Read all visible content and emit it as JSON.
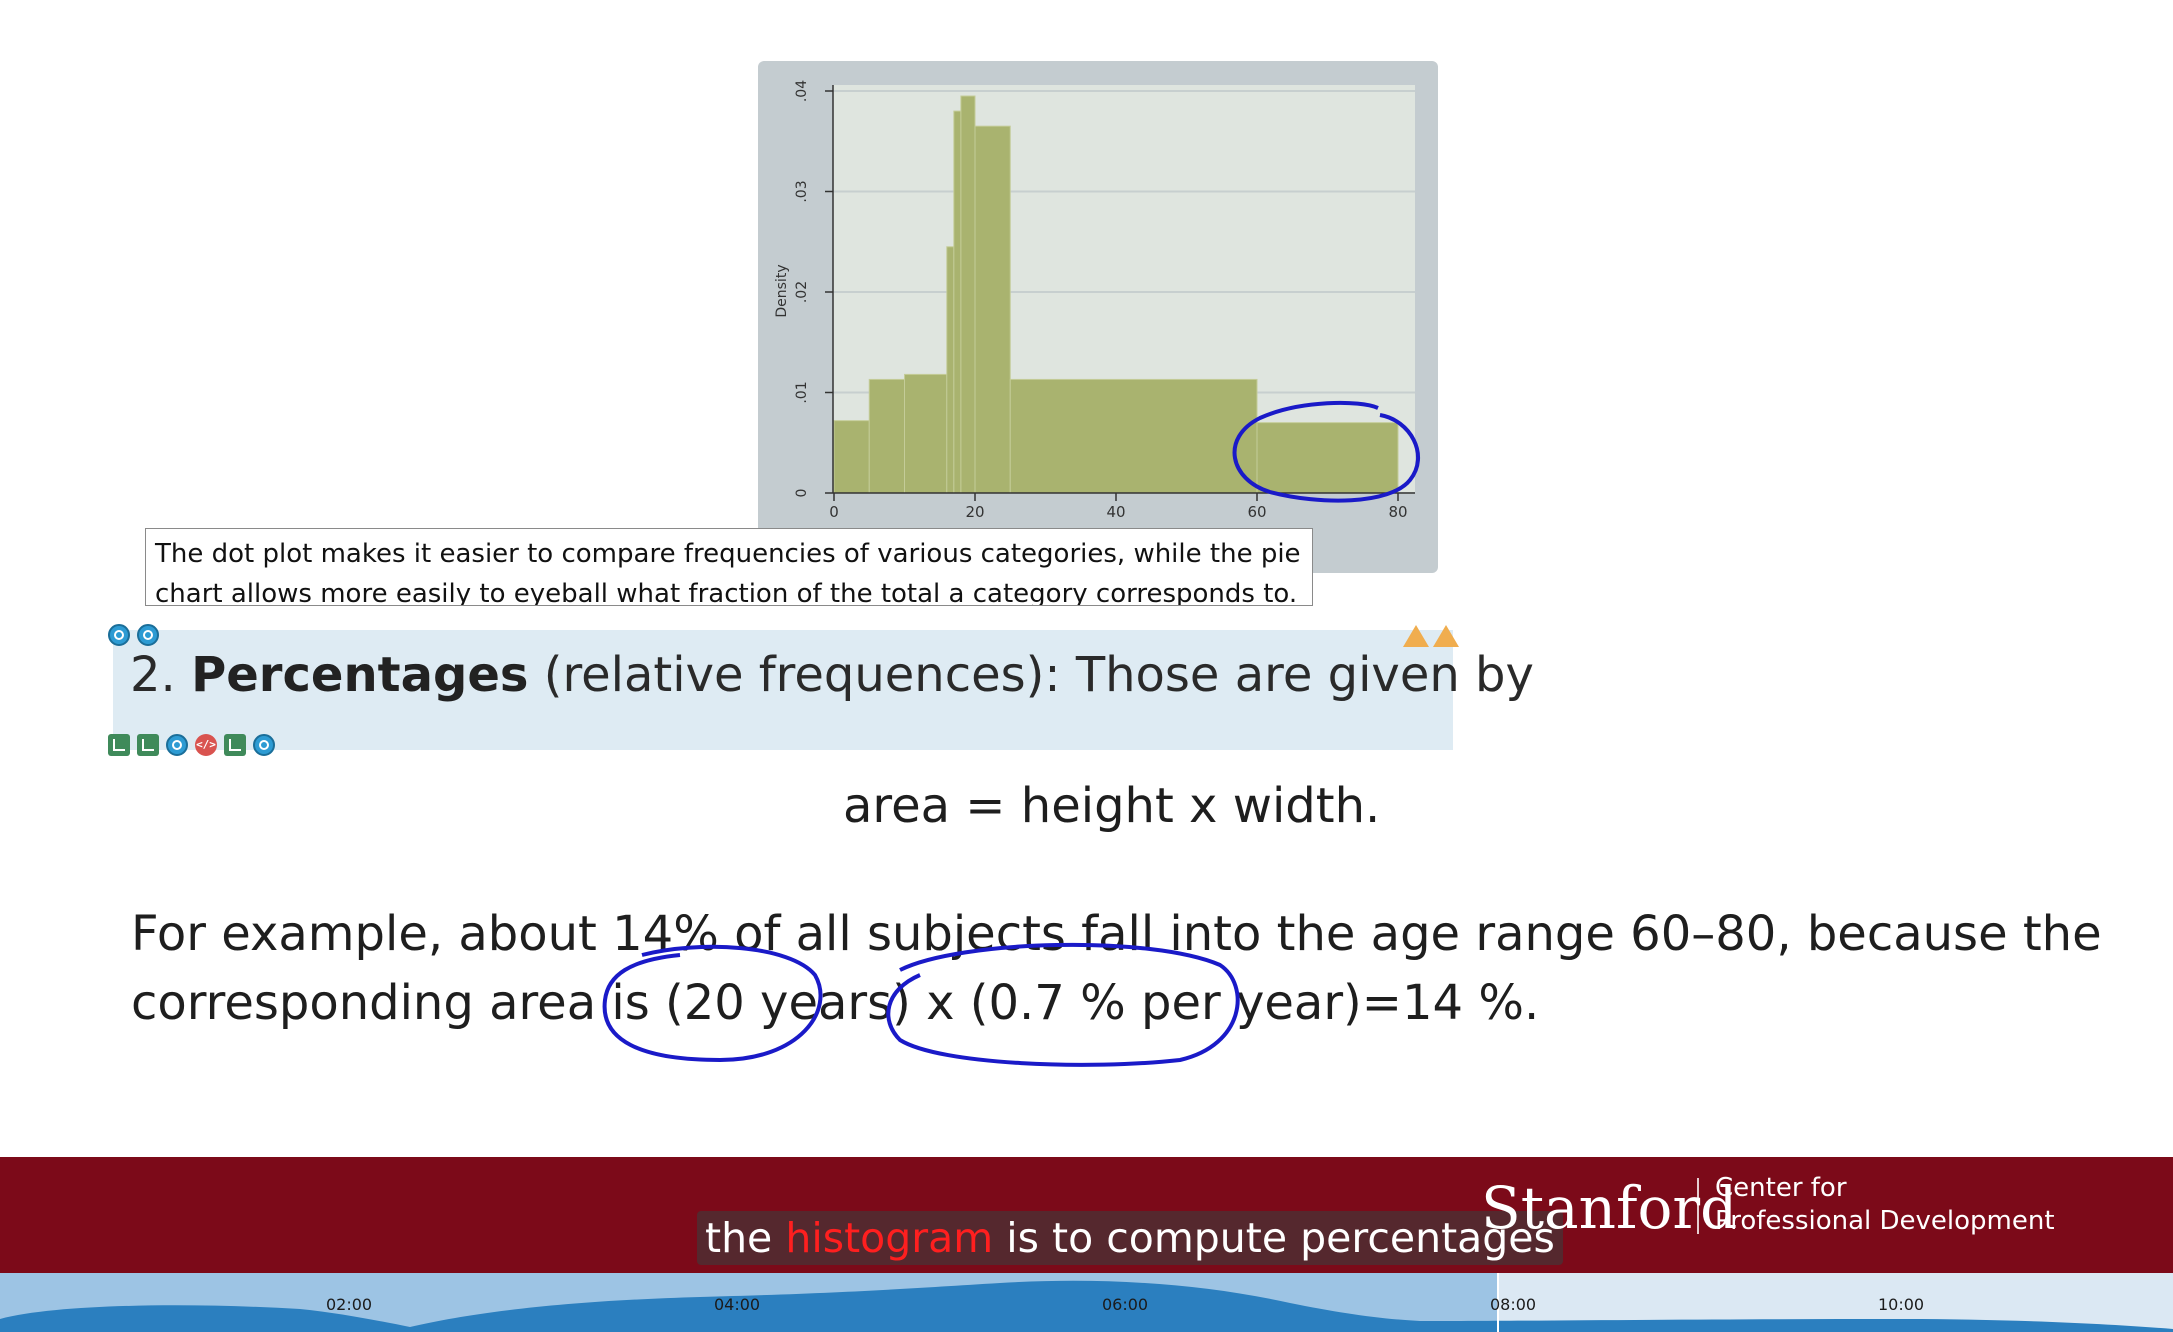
{
  "chart_data": {
    "type": "bar",
    "ylabel": "Density",
    "xlim": [
      0,
      80
    ],
    "ylim": [
      0,
      0.04
    ],
    "x_ticks": [
      "0",
      "20",
      "40",
      "60",
      "80"
    ],
    "y_ticks": [
      "0",
      ".01",
      ".02",
      ".03",
      ".04"
    ],
    "bins": [
      {
        "x0": 0,
        "x1": 5,
        "value": 0.0072
      },
      {
        "x0": 5,
        "x1": 10,
        "value": 0.0113
      },
      {
        "x0": 10,
        "x1": 16,
        "value": 0.0118
      },
      {
        "x0": 16,
        "x1": 17,
        "value": 0.0245
      },
      {
        "x0": 17,
        "x1": 18,
        "value": 0.038
      },
      {
        "x0": 18,
        "x1": 20,
        "value": 0.0395
      },
      {
        "x0": 20,
        "x1": 25,
        "value": 0.0365
      },
      {
        "x0": 25,
        "x1": 60,
        "value": 0.0113
      },
      {
        "x0": 60,
        "x1": 80,
        "value": 0.007
      }
    ],
    "grid": true
  },
  "caption": {
    "line1": "The dot plot makes it easier to compare frequencies of various categories, while the pie",
    "line2": "chart allows more easily to eyeball what fraction of the total a category corresponds to."
  },
  "heading": {
    "number": "2.",
    "bold": "Percentages",
    "rest": "(relative frequences):  Those are given by"
  },
  "formula": "area = height x width.",
  "example": {
    "line1": "For example, about 14% of all subjects fall into the age range 60–80, because the",
    "line2": "corresponding area is (20 years) x (0.7 % per year)=14 %."
  },
  "subtitle": {
    "before": "the",
    "highlight": "histogram",
    "after": "is to compute percentages"
  },
  "brand": {
    "name": "Stanford",
    "tagline1": "Center for",
    "tagline2": "Professional Development"
  },
  "timeline": {
    "labels": [
      "02:00",
      "04:00",
      "06:00",
      "08:00",
      "10:00"
    ],
    "progress": 0.689
  },
  "colors": {
    "bar_fill": "#a9b36f",
    "plot_bg": "#dfe5df",
    "banner": "#7c0a19",
    "annotation": "#1a1ac8",
    "subtitle_highlight": "#ff1f1f"
  }
}
